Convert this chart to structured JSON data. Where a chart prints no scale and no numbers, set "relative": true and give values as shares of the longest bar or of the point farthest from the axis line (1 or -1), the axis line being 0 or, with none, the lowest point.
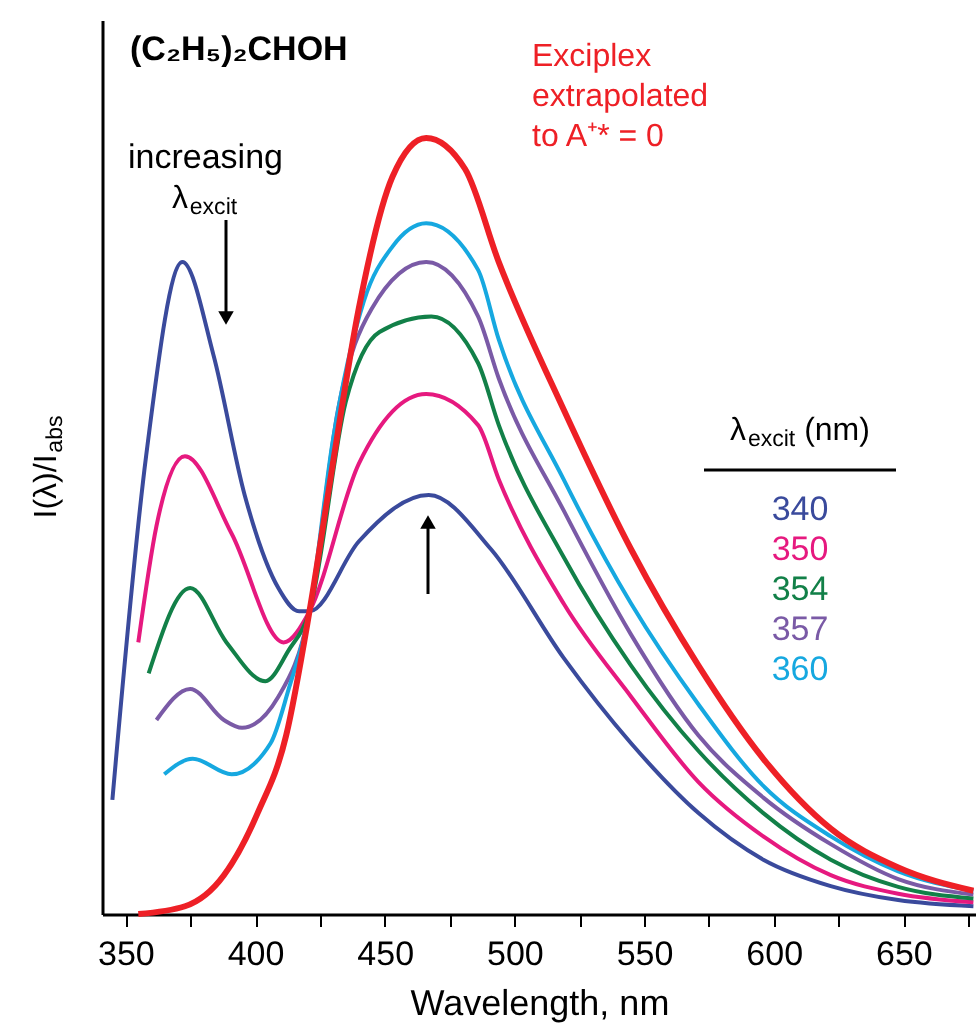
{
  "chart_data": {
    "type": "line",
    "relative": true,
    "xlabel": "Wavelength, nm",
    "ylabel": "I(λ)/I$_{abs}$",
    "legend_title": "λ$_{excit}$ (nm)",
    "legend": "right",
    "xlim": [
      341,
      678
    ],
    "xticks": [
      350,
      {
        "value": 375,
        "label": null
      },
      400,
      {
        "value": 425,
        "label": null
      },
      450,
      {
        "value": 475,
        "label": null
      },
      500,
      {
        "value": 525,
        "label": null
      },
      550,
      {
        "value": 575,
        "label": null
      },
      600,
      {
        "value": 625,
        "label": null
      },
      650,
      {
        "value": 675,
        "label": null
      }
    ],
    "grid": false,
    "marker": "none",
    "line_style": "solid",
    "annotations": [
      "(C₂H₅)₂CHOH",
      "increasing λ$_{excit}$"
    ],
    "series": [
      {
        "name": "340",
        "color": "#3a4a9c",
        "x": [
          345,
          358,
          372,
          384,
          396,
          409,
          417,
          421,
          440,
          467,
          491,
          519,
          545,
          571,
          596,
          622,
          648,
          677
        ],
        "values": [
          0.147,
          0.59,
          0.84,
          0.72,
          0.54,
          0.42,
          0.39,
          0.39,
          0.48,
          0.54,
          0.47,
          0.33,
          0.22,
          0.13,
          0.07,
          0.036,
          0.018,
          0.01
        ]
      },
      {
        "name": "350",
        "color": "#e6197f",
        "x": [
          355,
          362,
          373,
          391,
          411,
          421,
          440,
          466,
          486,
          494,
          519,
          545,
          571,
          596,
          622,
          648,
          677
        ],
        "values": [
          0.35,
          0.5,
          0.59,
          0.49,
          0.35,
          0.39,
          0.58,
          0.67,
          0.63,
          0.56,
          0.4,
          0.28,
          0.17,
          0.1,
          0.05,
          0.026,
          0.015
        ]
      },
      {
        "name": "354",
        "color": "#128048",
        "x": [
          359,
          375,
          389,
          404,
          413,
          421,
          435,
          448,
          468,
          486,
          494,
          519,
          545,
          571,
          596,
          622,
          648,
          677
        ],
        "values": [
          0.31,
          0.42,
          0.35,
          0.3,
          0.34,
          0.39,
          0.66,
          0.75,
          0.77,
          0.71,
          0.63,
          0.46,
          0.32,
          0.21,
          0.13,
          0.07,
          0.035,
          0.02
        ]
      },
      {
        "name": "357",
        "color": "#7a5aa6",
        "x": [
          362,
          375,
          388,
          395,
          409,
          421,
          432,
          445,
          466,
          486,
          494,
          519,
          545,
          571,
          596,
          622,
          648,
          677
        ],
        "values": [
          0.25,
          0.29,
          0.25,
          0.24,
          0.28,
          0.39,
          0.65,
          0.78,
          0.84,
          0.77,
          0.69,
          0.52,
          0.36,
          0.23,
          0.15,
          0.09,
          0.045,
          0.025
        ]
      },
      {
        "name": "360",
        "color": "#16a8e0",
        "x": [
          365,
          376,
          391,
          406,
          413,
          421,
          430,
          442,
          453,
          466,
          486,
          494,
          519,
          545,
          571,
          596,
          622,
          648,
          677
        ],
        "values": [
          0.18,
          0.2,
          0.18,
          0.22,
          0.29,
          0.39,
          0.61,
          0.79,
          0.86,
          0.89,
          0.83,
          0.74,
          0.56,
          0.4,
          0.27,
          0.165,
          0.1,
          0.055,
          0.03
        ]
      },
      {
        "name": "Exciplex extrapolated to A⁺* = 0",
        "color": "#ee2026",
        "x": [
          355,
          373,
          388,
          401,
          412,
          421,
          430,
          440,
          453,
          466,
          481,
          494,
          519,
          545,
          571,
          596,
          622,
          648,
          677
        ],
        "values": [
          0,
          0.01,
          0.05,
          0.13,
          0.23,
          0.39,
          0.58,
          0.78,
          0.95,
          1,
          0.96,
          0.84,
          0.65,
          0.47,
          0.32,
          0.2,
          0.11,
          0.06,
          0.03
        ]
      }
    ]
  }
}
